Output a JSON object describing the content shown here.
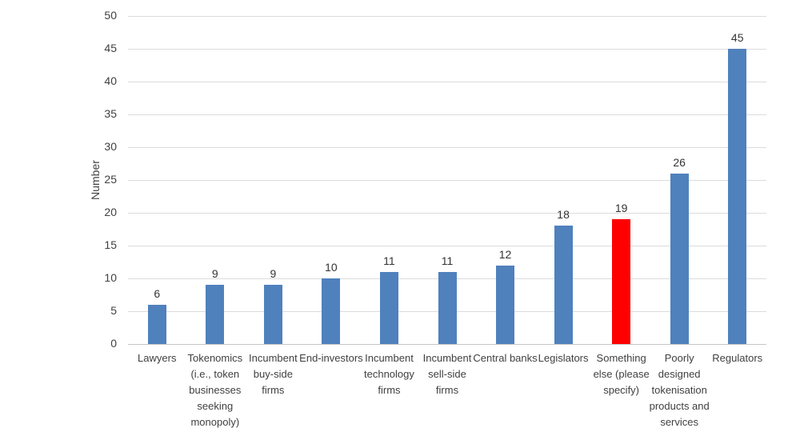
{
  "chart_data": {
    "type": "bar",
    "title": "",
    "xlabel": "",
    "ylabel": "Number",
    "ylim": [
      0,
      50
    ],
    "ytick_step": 5,
    "grid": true,
    "legend_position": "none",
    "categories": [
      "Lawyers",
      "Tokenomics (i.e., token businesses seeking monopoly)",
      "Incumbent buy-side firms",
      "End-investors",
      "Incumbent technology firms",
      "Incumbent sell-side firms",
      "Central banks",
      "Legislators",
      "Something else (please specify)",
      "Poorly designed tokenisation products and services",
      "Regulators"
    ],
    "category_label_lines": [
      [
        "Lawyers"
      ],
      [
        "Tokenomics",
        "(i.e., token",
        "businesses",
        "seeking",
        "monopoly)"
      ],
      [
        "Incumbent",
        "buy-side",
        "firms"
      ],
      [
        "End-investors"
      ],
      [
        "Incumbent",
        "technology",
        "firms"
      ],
      [
        "Incumbent",
        "sell-side",
        "firms"
      ],
      [
        "Central banks"
      ],
      [
        "Legislators"
      ],
      [
        "Something",
        "else (please",
        "specify)"
      ],
      [
        "Poorly",
        "designed",
        "tokenisation",
        "products and",
        "services"
      ],
      [
        "Regulators"
      ]
    ],
    "values": [
      6,
      9,
      9,
      10,
      11,
      11,
      12,
      18,
      19,
      26,
      45
    ],
    "data_labels_shown": true,
    "bar_color": "#4F81BD",
    "highlight_index": 8,
    "highlight_color": "#FF0000",
    "gridline_color": "#dcdcdc",
    "text_color": "#404040"
  }
}
